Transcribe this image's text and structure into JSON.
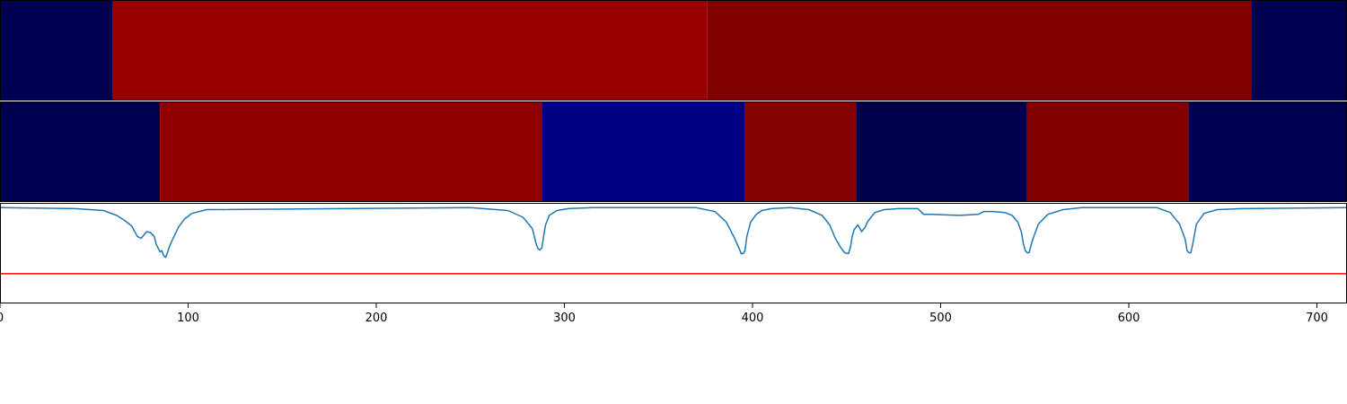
{
  "chart_data": [
    {
      "type": "heatmap",
      "panel": "top-band",
      "xlim": [
        0,
        716
      ],
      "segments": [
        {
          "start": 0,
          "end": 60,
          "color": "#000050"
        },
        {
          "start": 60,
          "end": 376,
          "color": "#990000"
        },
        {
          "start": 376,
          "end": 665,
          "color": "#800000"
        },
        {
          "start": 665,
          "end": 716,
          "color": "#000050"
        }
      ]
    },
    {
      "type": "heatmap",
      "panel": "middle-band",
      "xlim": [
        0,
        716
      ],
      "segments": [
        {
          "start": 0,
          "end": 85,
          "color": "#000050"
        },
        {
          "start": 85,
          "end": 288,
          "color": "#910000"
        },
        {
          "start": 288,
          "end": 396,
          "color": "#000085"
        },
        {
          "start": 396,
          "end": 455,
          "color": "#850000"
        },
        {
          "start": 455,
          "end": 546,
          "color": "#00004f"
        },
        {
          "start": 546,
          "end": 632,
          "color": "#800000"
        },
        {
          "start": 632,
          "end": 716,
          "color": "#000050"
        }
      ]
    },
    {
      "type": "line",
      "panel": "signal",
      "xlim": [
        0,
        716
      ],
      "ylim": [
        -1,
        0.05
      ],
      "xticks": [
        "0",
        "100",
        "200",
        "300",
        "400",
        "500",
        "600",
        "700"
      ],
      "tick_values": [
        0,
        100,
        200,
        300,
        400,
        500,
        600,
        700
      ],
      "grid": false,
      "series": [
        {
          "color": "#1f77b4",
          "x": [
            0,
            40,
            55,
            62,
            66,
            70,
            73,
            75,
            78,
            80,
            82,
            83,
            85,
            86,
            87,
            88,
            89,
            90,
            92,
            95,
            98,
            102,
            110,
            250,
            270,
            278,
            283,
            285,
            286,
            287,
            288,
            289,
            290,
            292,
            296,
            302,
            315,
            370,
            380,
            386,
            390,
            393,
            394,
            395,
            396,
            397,
            399,
            402,
            405,
            410,
            420,
            430,
            437,
            441,
            444,
            447,
            449,
            451,
            452,
            453,
            454,
            456,
            458,
            460,
            461,
            463,
            465,
            470,
            478,
            488,
            490,
            491,
            495,
            510,
            520,
            523,
            524,
            528,
            534,
            538,
            541,
            543,
            544,
            545,
            546,
            547,
            549,
            552,
            557,
            565,
            575,
            615,
            622,
            627,
            630,
            631,
            632,
            633,
            634,
            636,
            640,
            647,
            660,
            716
          ],
          "y": [
            0.0,
            -0.01,
            -0.03,
            -0.08,
            -0.13,
            -0.19,
            -0.3,
            -0.32,
            -0.25,
            -0.26,
            -0.3,
            -0.38,
            -0.46,
            -0.45,
            -0.5,
            -0.52,
            -0.47,
            -0.41,
            -0.32,
            -0.2,
            -0.12,
            -0.06,
            -0.02,
            0.0,
            -0.03,
            -0.1,
            -0.22,
            -0.38,
            -0.43,
            -0.44,
            -0.42,
            -0.3,
            -0.18,
            -0.08,
            -0.03,
            -0.01,
            0.0,
            0.0,
            -0.04,
            -0.15,
            -0.3,
            -0.43,
            -0.48,
            -0.48,
            -0.45,
            -0.3,
            -0.15,
            -0.07,
            -0.03,
            -0.01,
            0.0,
            -0.02,
            -0.08,
            -0.18,
            -0.32,
            -0.42,
            -0.47,
            -0.48,
            -0.42,
            -0.3,
            -0.23,
            -0.18,
            -0.25,
            -0.2,
            -0.15,
            -0.1,
            -0.05,
            -0.02,
            -0.01,
            -0.01,
            -0.05,
            -0.07,
            -0.07,
            -0.08,
            -0.07,
            -0.04,
            -0.04,
            -0.04,
            -0.05,
            -0.08,
            -0.15,
            -0.26,
            -0.38,
            -0.45,
            -0.47,
            -0.47,
            -0.33,
            -0.17,
            -0.07,
            -0.02,
            0.0,
            0.0,
            -0.05,
            -0.17,
            -0.33,
            -0.45,
            -0.47,
            -0.47,
            -0.38,
            -0.17,
            -0.06,
            -0.02,
            -0.01,
            0.0
          ]
        },
        {
          "color": "#ff0000",
          "x": [
            0,
            716
          ],
          "y": [
            -0.69,
            -0.69
          ]
        }
      ]
    }
  ]
}
